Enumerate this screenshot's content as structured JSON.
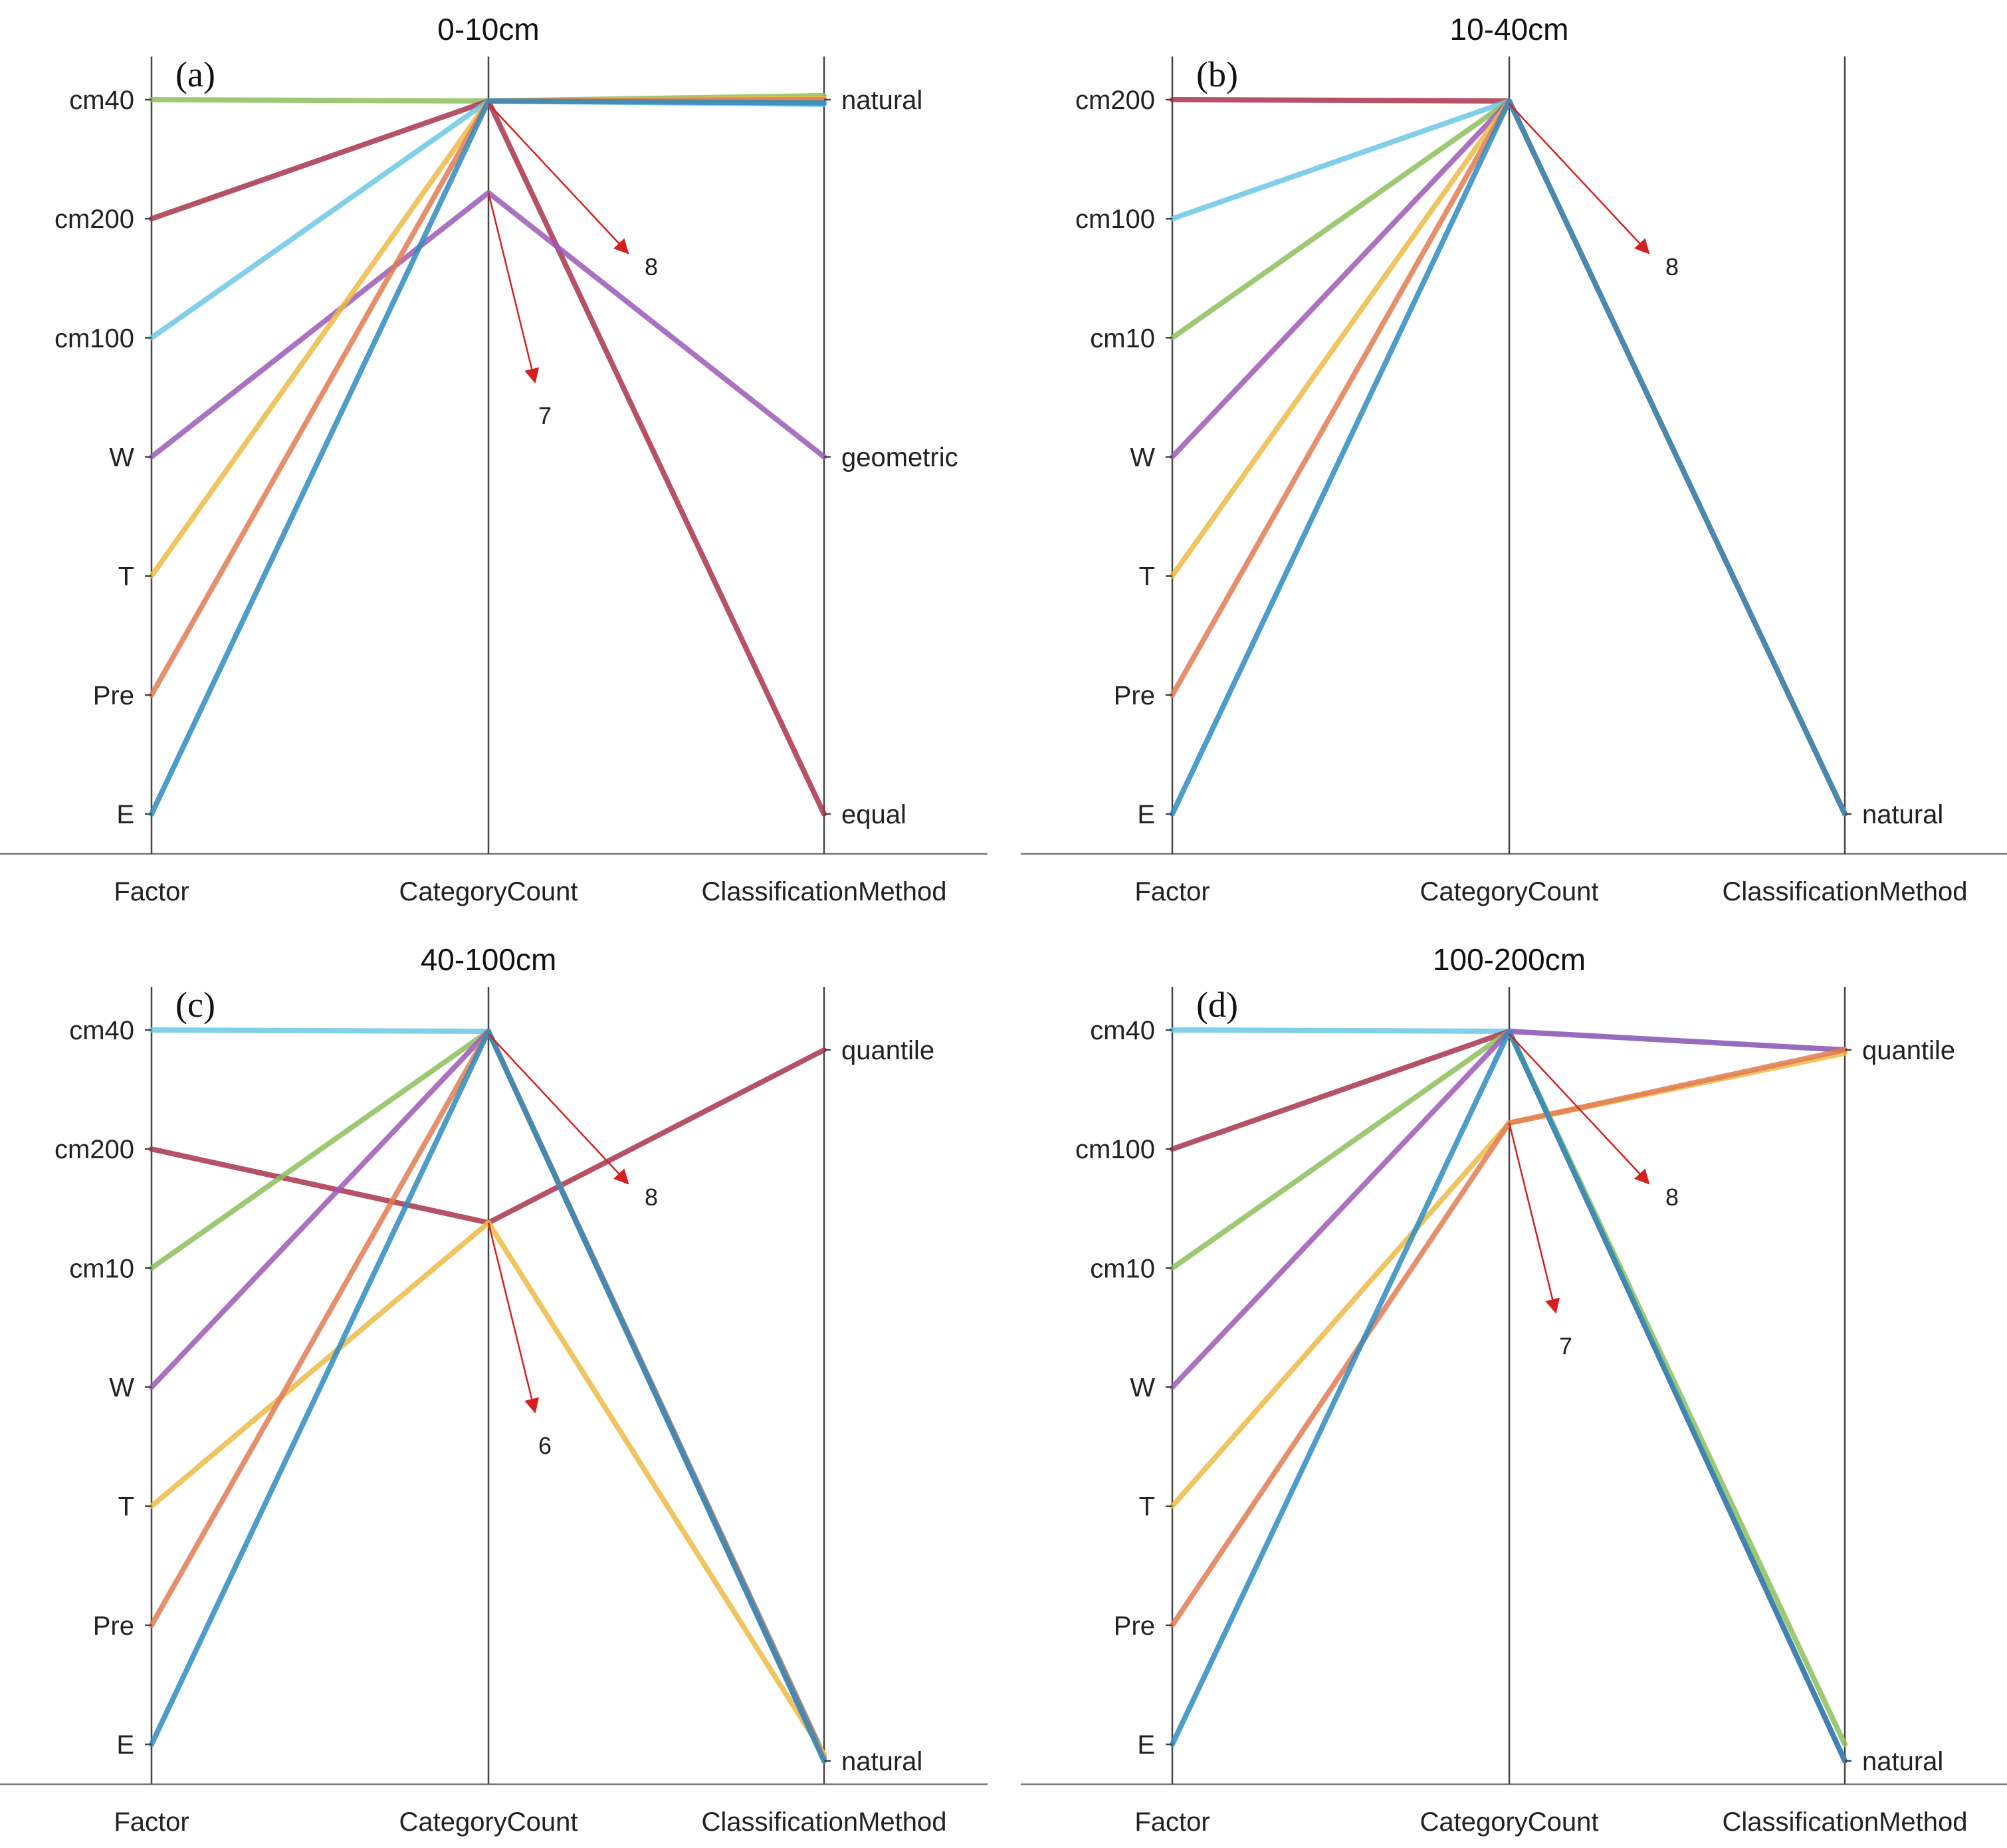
{
  "chart_data": [
    {
      "type": "parallel-coordinates",
      "panel_label": "(a)",
      "title": "0-10cm",
      "axes": [
        "Factor",
        "CategoryCount",
        "ClassificationMethod"
      ],
      "factor_levels": [
        "cm40",
        "cm200",
        "cm100",
        "W",
        "T",
        "Pre",
        "E"
      ],
      "category_count_range": [
        6,
        8
      ],
      "classification_levels": [
        "natural",
        "geometric",
        "equal"
      ],
      "annotations": [
        {
          "text": "8",
          "at": 8,
          "dir": "down-right"
        },
        {
          "text": "7",
          "at": 7,
          "dir": "down"
        }
      ],
      "series": [
        {
          "name": "cm40",
          "color": "#8DBF5C",
          "factor": "cm40",
          "count": 8,
          "method": "natural",
          "method_offset": 0.06
        },
        {
          "name": "cm200",
          "color": "#A8344B",
          "factor": "cm200",
          "count": 8,
          "method": "equal",
          "method_offset": 0
        },
        {
          "name": "cm100",
          "color": "#6CC7E6",
          "factor": "cm100",
          "count": 8,
          "method": "natural",
          "method_offset": -0.07
        },
        {
          "name": "W",
          "color": "#9B59B6",
          "factor": "W",
          "count": 7,
          "method": "geometric",
          "method_offset": 0
        },
        {
          "name": "T",
          "color": "#EDBB45",
          "factor": "T",
          "count": 8,
          "method": "natural",
          "method_offset": 0.02
        },
        {
          "name": "Pre",
          "color": "#E07B54",
          "factor": "Pre",
          "count": 8,
          "method": "natural",
          "method_offset": 0
        },
        {
          "name": "E",
          "color": "#2E8BC0",
          "factor": "E",
          "count": 8,
          "method": "natural",
          "method_offset": -0.05
        }
      ]
    },
    {
      "type": "parallel-coordinates",
      "panel_label": "(b)",
      "title": "10-40cm",
      "axes": [
        "Factor",
        "CategoryCount",
        "ClassificationMethod"
      ],
      "factor_levels": [
        "cm200",
        "cm100",
        "cm10",
        "W",
        "T",
        "Pre",
        "E"
      ],
      "category_count_range": [
        6,
        8
      ],
      "classification_levels": [
        "natural"
      ],
      "annotations": [
        {
          "text": "8",
          "at": 8,
          "dir": "down-right"
        }
      ],
      "series": [
        {
          "name": "cm200",
          "color": "#A8344B",
          "factor": "cm200",
          "count": 8,
          "method": "natural",
          "method_offset": 0
        },
        {
          "name": "cm100",
          "color": "#6CC7E6",
          "factor": "cm100",
          "count": 8,
          "method": "natural",
          "method_offset": 0
        },
        {
          "name": "cm10",
          "color": "#8DBF5C",
          "factor": "cm10",
          "count": 8,
          "method": "natural",
          "method_offset": 0
        },
        {
          "name": "W",
          "color": "#9B59B6",
          "factor": "W",
          "count": 8,
          "method": "natural",
          "method_offset": 0
        },
        {
          "name": "T",
          "color": "#EDBB45",
          "factor": "T",
          "count": 8,
          "method": "natural",
          "method_offset": 0
        },
        {
          "name": "Pre",
          "color": "#E07B54",
          "factor": "Pre",
          "count": 8,
          "method": "natural",
          "method_offset": 0
        },
        {
          "name": "E",
          "color": "#2E8BC0",
          "factor": "E",
          "count": 8,
          "method": "natural",
          "method_offset": 0
        }
      ]
    },
    {
      "type": "parallel-coordinates",
      "panel_label": "(c)",
      "title": "40-100cm",
      "axes": [
        "Factor",
        "CategoryCount",
        "ClassificationMethod"
      ],
      "factor_levels": [
        "cm40",
        "cm200",
        "cm10",
        "W",
        "T",
        "Pre",
        "E"
      ],
      "category_count_range": [
        6,
        8
      ],
      "classification_levels": [
        "quantile",
        "natural"
      ],
      "annotations": [
        {
          "text": "8",
          "at": 8,
          "dir": "down-right"
        },
        {
          "text": "6",
          "at": 6,
          "dir": "down"
        }
      ],
      "series": [
        {
          "name": "cm40",
          "color": "#6CC7E6",
          "factor": "cm40",
          "count": 8,
          "method": "natural",
          "method_offset": 0
        },
        {
          "name": "cm200",
          "color": "#A8344B",
          "factor": "cm200",
          "count": 6,
          "method": "quantile",
          "method_offset": 0
        },
        {
          "name": "cm10",
          "color": "#8DBF5C",
          "factor": "cm10",
          "count": 8,
          "method": "natural",
          "method_offset": 0.08
        },
        {
          "name": "W",
          "color": "#9B59B6",
          "factor": "W",
          "count": 8,
          "method": "natural",
          "method_offset": 0.05
        },
        {
          "name": "T",
          "color": "#EDBB45",
          "factor": "T",
          "count": 6,
          "method": "natural",
          "method_offset": 0.1
        },
        {
          "name": "Pre",
          "color": "#E07B54",
          "factor": "Pre",
          "count": 8,
          "method": "natural",
          "method_offset": 0.02
        },
        {
          "name": "E",
          "color": "#2E8BC0",
          "factor": "E",
          "count": 8,
          "method": "natural",
          "method_offset": 0
        }
      ]
    },
    {
      "type": "parallel-coordinates",
      "panel_label": "(d)",
      "title": "100-200cm",
      "axes": [
        "Factor",
        "CategoryCount",
        "ClassificationMethod"
      ],
      "factor_levels": [
        "cm40",
        "cm100",
        "cm10",
        "W",
        "T",
        "Pre",
        "E"
      ],
      "category_count_range": [
        6,
        8
      ],
      "classification_levels": [
        "quantile",
        "natural"
      ],
      "annotations": [
        {
          "text": "8",
          "at": 8,
          "dir": "down-right"
        },
        {
          "text": "7",
          "at": 7,
          "dir": "down"
        }
      ],
      "series": [
        {
          "name": "cm40",
          "color": "#6CC7E6",
          "factor": "cm40",
          "count": 8,
          "method": "quantile",
          "method_offset": 0
        },
        {
          "name": "cm100",
          "color": "#A8344B",
          "factor": "cm100",
          "count": 8,
          "method": "natural",
          "method_offset": 0
        },
        {
          "name": "cm10",
          "color": "#8DBF5C",
          "factor": "cm10",
          "count": 8,
          "method": "natural",
          "method_offset": 0.25
        },
        {
          "name": "W",
          "color": "#9B59B6",
          "factor": "W",
          "count": 8,
          "method": "quantile",
          "method_offset": 0
        },
        {
          "name": "T",
          "color": "#EDBB45",
          "factor": "T",
          "count": 7,
          "method": "quantile",
          "method_offset": -0.05
        },
        {
          "name": "Pre",
          "color": "#E07B54",
          "factor": "Pre",
          "count": 7,
          "method": "quantile",
          "method_offset": 0
        },
        {
          "name": "E",
          "color": "#2E8BC0",
          "factor": "E",
          "count": 8,
          "method": "natural",
          "method_offset": 0
        }
      ]
    }
  ]
}
